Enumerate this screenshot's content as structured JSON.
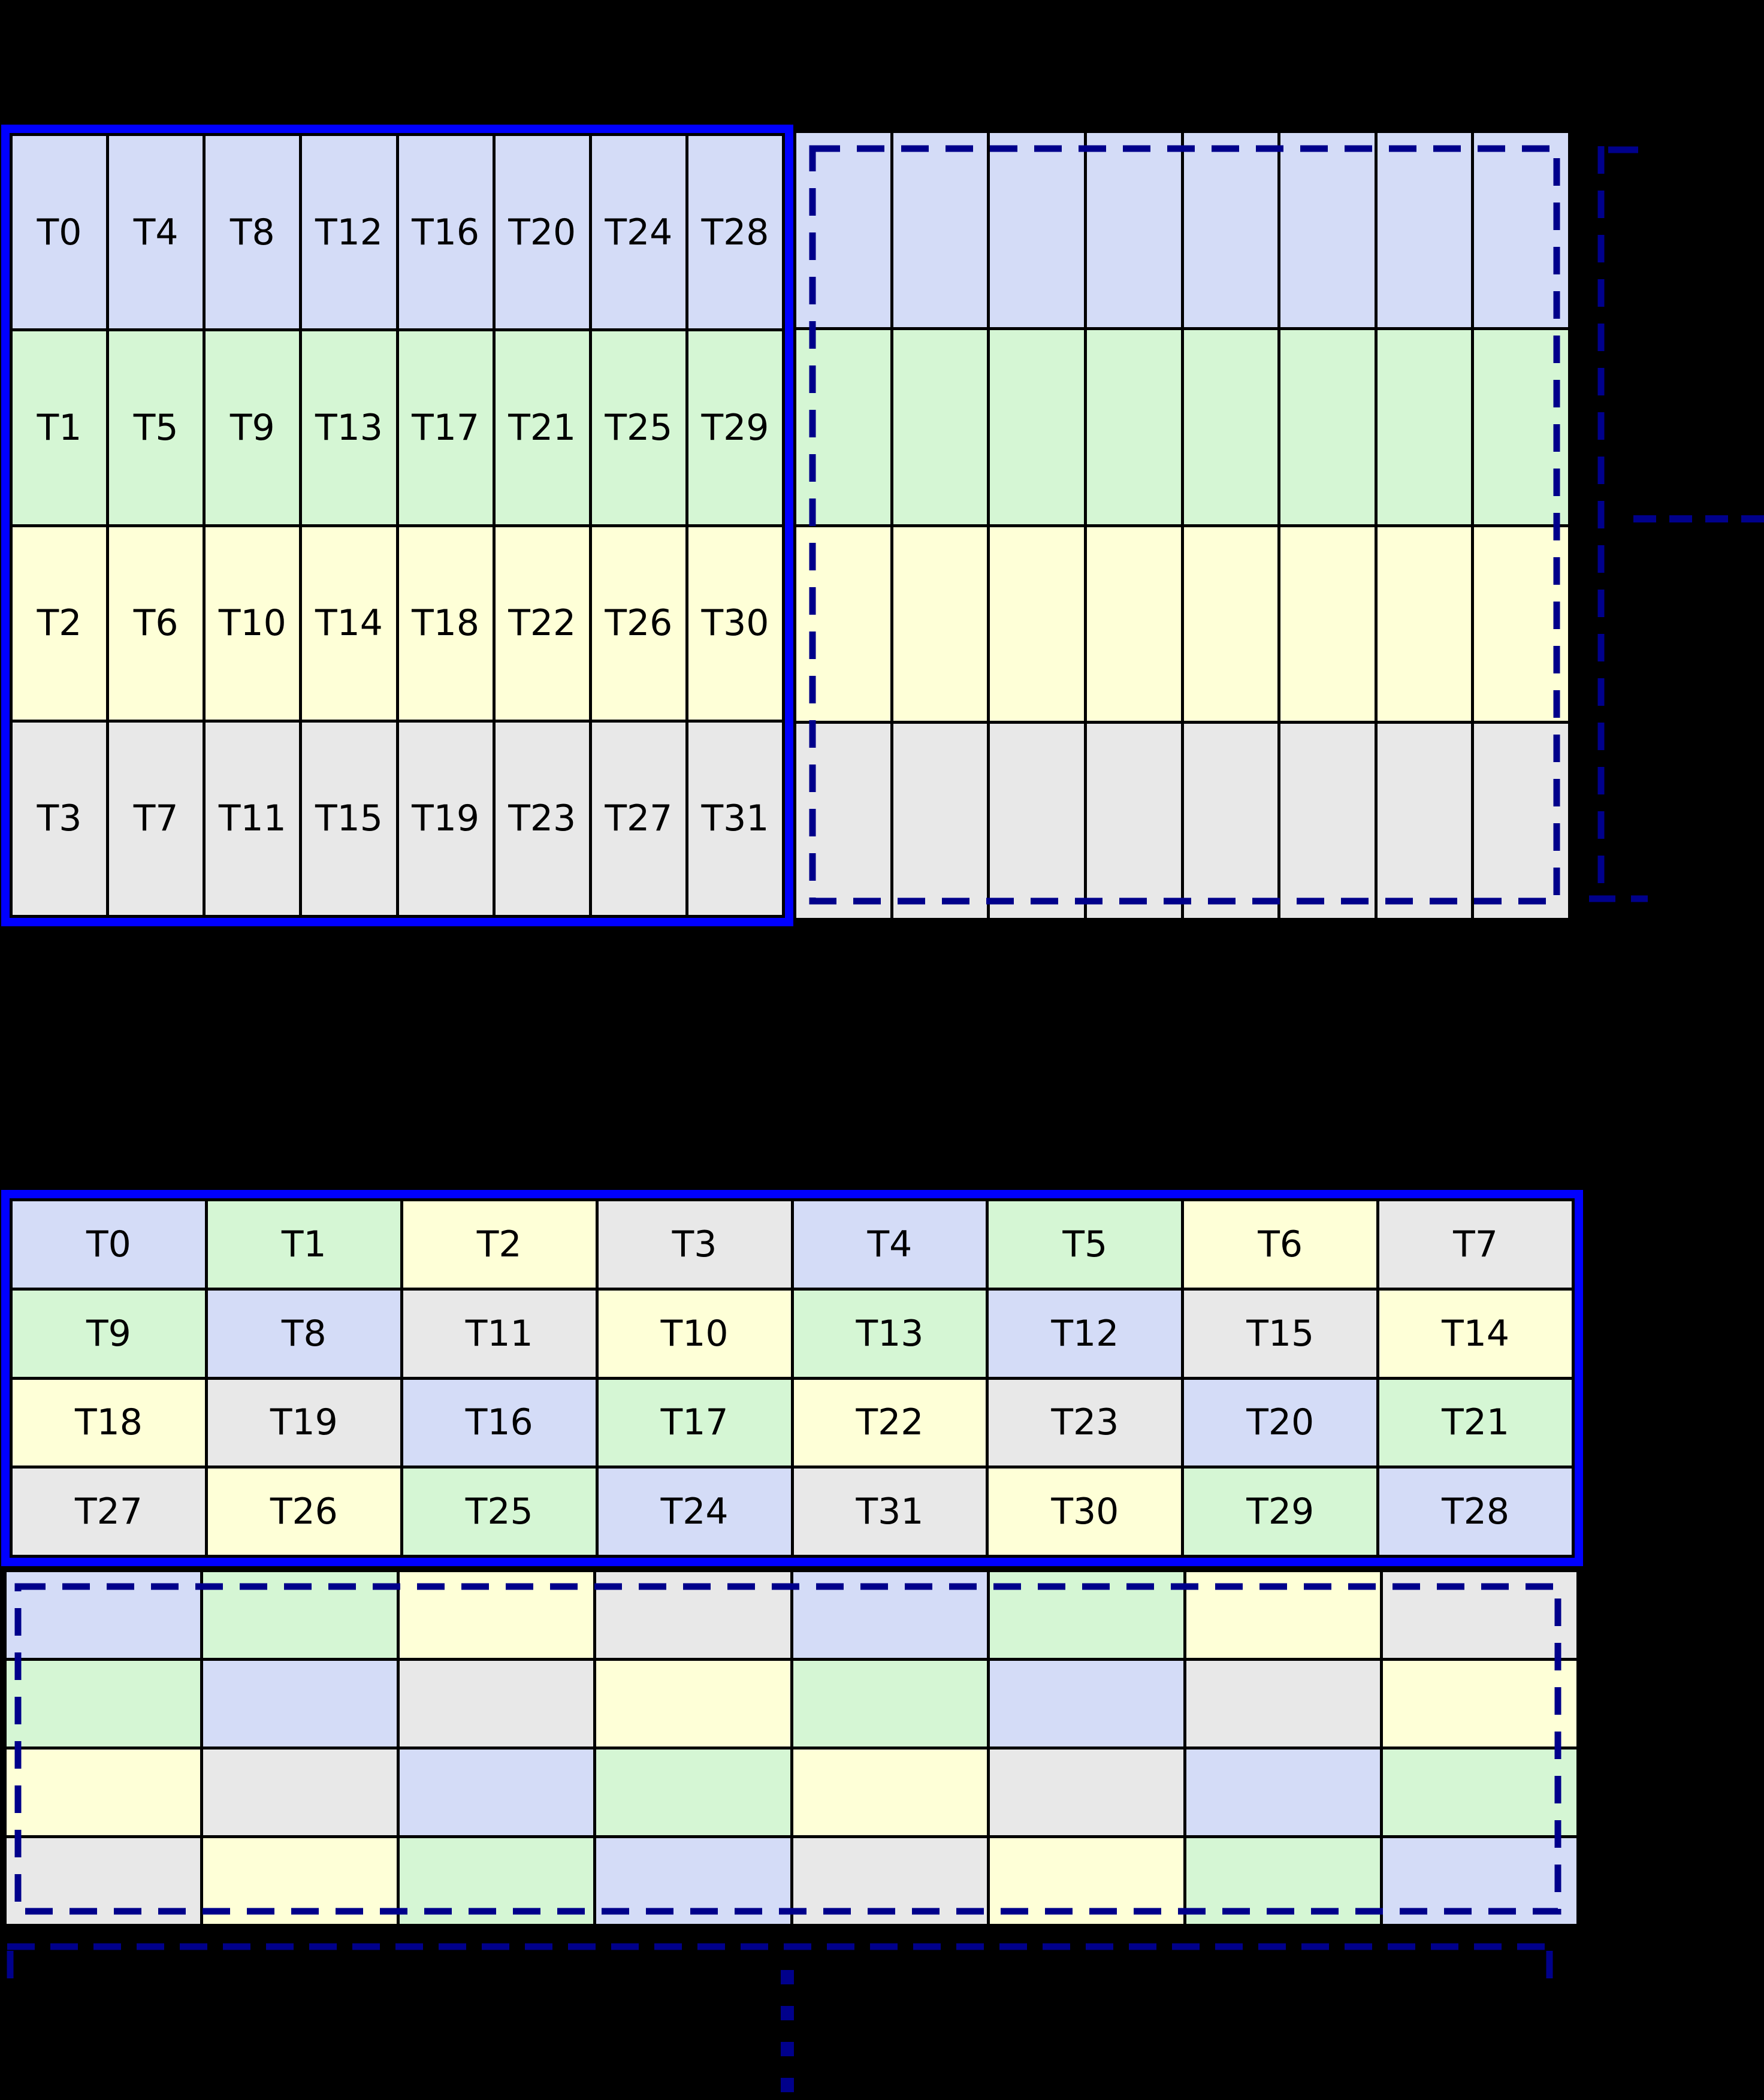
{
  "palette": {
    "background": "#000000",
    "block_frame": "#0000ff",
    "dashed_line": "#00008b",
    "cell_border": "#000000",
    "cell_colors": [
      "#d4dcf7",
      "#d5f6d4",
      "#feffd7",
      "#e8e8e8"
    ]
  },
  "figure_top": {
    "labeled_block": {
      "color_pattern": "row",
      "labels": [
        [
          "T0",
          "T4",
          "T8",
          "T12",
          "T16",
          "T20",
          "T24",
          "T28"
        ],
        [
          "T1",
          "T5",
          "T9",
          "T13",
          "T17",
          "T21",
          "T25",
          "T29"
        ],
        [
          "T2",
          "T6",
          "T10",
          "T14",
          "T18",
          "T22",
          "T26",
          "T30"
        ],
        [
          "T3",
          "T7",
          "T11",
          "T15",
          "T19",
          "T23",
          "T27",
          "T31"
        ]
      ]
    },
    "unlabeled_block": {
      "color_pattern": "row",
      "rows": 4,
      "cols": 8,
      "labels": null
    },
    "continuation": "horizontal-dots"
  },
  "figure_bottom": {
    "labeled_block": {
      "color_pattern": "xor",
      "labels": [
        [
          "T0",
          "T1",
          "T2",
          "T3",
          "T4",
          "T5",
          "T6",
          "T7"
        ],
        [
          "T9",
          "T8",
          "T11",
          "T10",
          "T13",
          "T12",
          "T15",
          "T14"
        ],
        [
          "T18",
          "T19",
          "T16",
          "T17",
          "T22",
          "T23",
          "T20",
          "T21"
        ],
        [
          "T27",
          "T26",
          "T25",
          "T24",
          "T31",
          "T30",
          "T29",
          "T28"
        ]
      ]
    },
    "unlabeled_block": {
      "color_pattern": "xor",
      "rows": 4,
      "cols": 8,
      "labels": null
    },
    "continuation": "vertical-dots"
  }
}
